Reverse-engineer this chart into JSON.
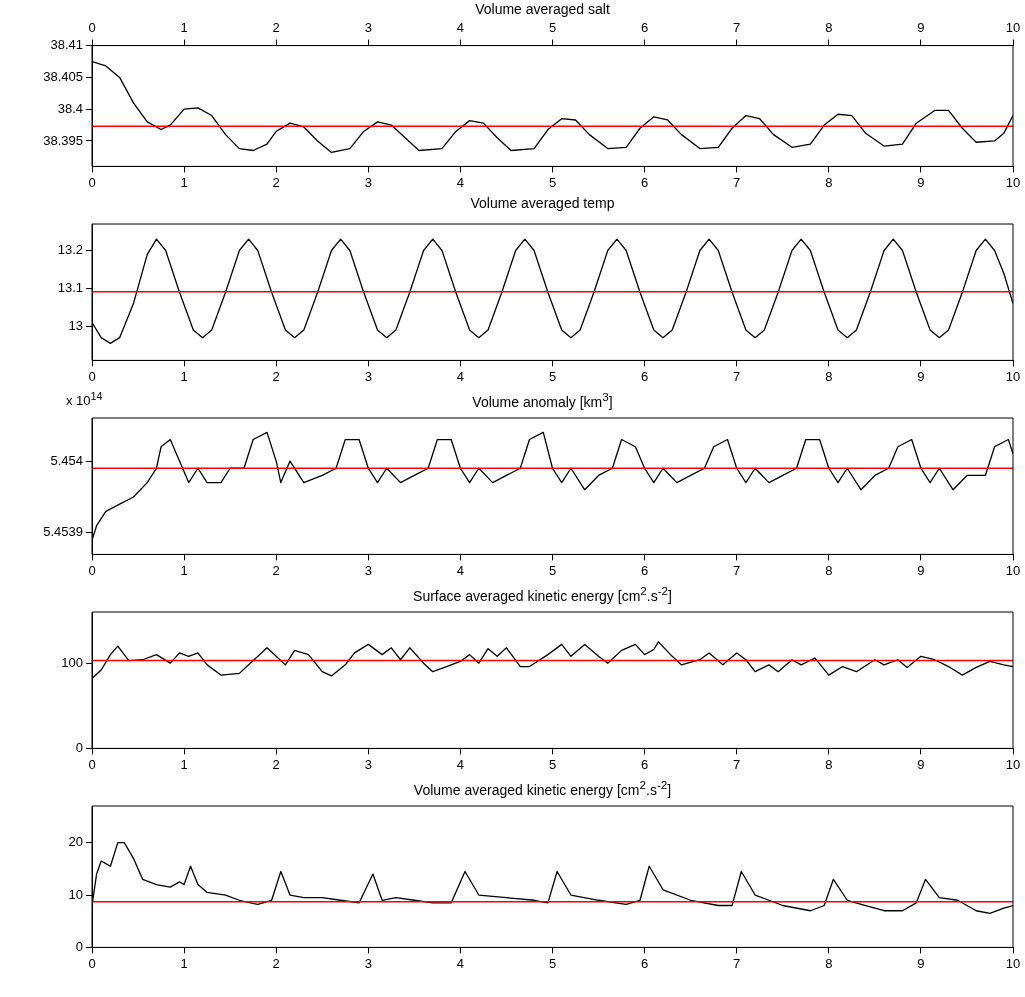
{
  "chart_data": [
    {
      "type": "line",
      "title": "Volume averaged salt",
      "marker": "none",
      "grid": false,
      "xlim": [
        0,
        10
      ],
      "xticks": [
        0,
        1,
        2,
        3,
        4,
        5,
        6,
        7,
        8,
        9,
        10
      ],
      "x2lim": [
        0,
        10
      ],
      "x2ticks": [
        0,
        1,
        2,
        3,
        4,
        5,
        6,
        7,
        8,
        9,
        10
      ],
      "ylim": [
        38.391,
        38.41
      ],
      "yticks": [
        38.395,
        38.4,
        38.405,
        38.41
      ],
      "ref_lines": [
        {
          "axis": "y",
          "value": 38.3973,
          "color": "#ff0000"
        }
      ],
      "series": [
        {
          "color": "#000000",
          "x": [
            0,
            0.15,
            0.3,
            0.45,
            0.6,
            0.75,
            0.85,
            1.0,
            1.15,
            1.3,
            1.45,
            1.6,
            1.75,
            1.9,
            2.0,
            2.15,
            2.3,
            2.45,
            2.6,
            2.8,
            2.95,
            3.1,
            3.25,
            3.4,
            3.55,
            3.8,
            3.95,
            4.1,
            4.25,
            4.4,
            4.55,
            4.8,
            4.95,
            5.1,
            5.25,
            5.4,
            5.6,
            5.8,
            5.95,
            6.1,
            6.25,
            6.4,
            6.6,
            6.8,
            6.95,
            7.1,
            7.25,
            7.4,
            7.6,
            7.8,
            7.95,
            8.1,
            8.25,
            8.4,
            8.6,
            8.8,
            8.95,
            9.15,
            9.3,
            9.45,
            9.6,
            9.8,
            9.9,
            10
          ],
          "values": [
            38.4075,
            38.4068,
            38.405,
            38.401,
            38.398,
            38.3968,
            38.3975,
            38.4,
            38.4002,
            38.399,
            38.396,
            38.3938,
            38.3935,
            38.3945,
            38.3965,
            38.3978,
            38.3972,
            38.395,
            38.3932,
            38.3938,
            38.3965,
            38.398,
            38.3975,
            38.3955,
            38.3935,
            38.3938,
            38.3965,
            38.3982,
            38.3978,
            38.3955,
            38.3935,
            38.3938,
            38.3968,
            38.3985,
            38.3983,
            38.396,
            38.3938,
            38.394,
            38.397,
            38.3988,
            38.3983,
            38.396,
            38.3938,
            38.394,
            38.397,
            38.399,
            38.3985,
            38.396,
            38.394,
            38.3945,
            38.3975,
            38.3992,
            38.399,
            38.3962,
            38.3942,
            38.3945,
            38.3978,
            38.3998,
            38.3998,
            38.397,
            38.3948,
            38.395,
            38.3962,
            38.399
          ]
        }
      ]
    },
    {
      "type": "line",
      "title": "Volume averaged temp",
      "marker": "none",
      "grid": false,
      "xlim": [
        0,
        10
      ],
      "xticks": [
        0,
        1,
        2,
        3,
        4,
        5,
        6,
        7,
        8,
        9,
        10
      ],
      "ylim": [
        12.91,
        13.27
      ],
      "yticks": [
        13,
        13.1,
        13.2
      ],
      "ref_lines": [
        {
          "axis": "y",
          "value": 13.091,
          "color": "#ff0000"
        }
      ],
      "series": [
        {
          "color": "#000000",
          "x": [
            0,
            0.1,
            0.2,
            0.3,
            0.45,
            0.6,
            0.7,
            0.8,
            0.95,
            1.1,
            1.2,
            1.3,
            1.45,
            1.6,
            1.7,
            1.8,
            1.95,
            2.1,
            2.2,
            2.3,
            2.45,
            2.6,
            2.7,
            2.8,
            2.95,
            3.1,
            3.2,
            3.3,
            3.45,
            3.6,
            3.7,
            3.8,
            3.95,
            4.1,
            4.2,
            4.3,
            4.45,
            4.6,
            4.7,
            4.8,
            4.95,
            5.1,
            5.2,
            5.3,
            5.45,
            5.6,
            5.7,
            5.8,
            5.95,
            6.1,
            6.2,
            6.3,
            6.45,
            6.6,
            6.7,
            6.8,
            6.95,
            7.1,
            7.2,
            7.3,
            7.45,
            7.6,
            7.7,
            7.8,
            7.95,
            8.1,
            8.2,
            8.3,
            8.45,
            8.6,
            8.7,
            8.8,
            8.95,
            9.1,
            9.2,
            9.3,
            9.45,
            9.6,
            9.7,
            9.8,
            9.9,
            10
          ],
          "values": [
            13.01,
            12.97,
            12.955,
            12.97,
            13.06,
            13.19,
            13.23,
            13.2,
            13.09,
            12.99,
            12.97,
            12.99,
            13.09,
            13.2,
            13.23,
            13.2,
            13.09,
            12.99,
            12.97,
            12.99,
            13.09,
            13.2,
            13.23,
            13.2,
            13.09,
            12.99,
            12.97,
            12.99,
            13.09,
            13.2,
            13.23,
            13.2,
            13.09,
            12.99,
            12.97,
            12.99,
            13.09,
            13.2,
            13.23,
            13.2,
            13.09,
            12.99,
            12.97,
            12.99,
            13.09,
            13.2,
            13.23,
            13.2,
            13.09,
            12.99,
            12.97,
            12.99,
            13.09,
            13.2,
            13.23,
            13.2,
            13.09,
            12.99,
            12.97,
            12.99,
            13.09,
            13.2,
            13.23,
            13.2,
            13.09,
            12.99,
            12.97,
            12.99,
            13.09,
            13.2,
            13.23,
            13.2,
            13.09,
            12.99,
            12.97,
            12.99,
            13.09,
            13.2,
            13.23,
            13.2,
            13.14,
            13.06
          ]
        }
      ]
    },
    {
      "type": "line",
      "title": "Volume anomaly [km$^{3}$]",
      "marker": "none",
      "grid": false,
      "annotations": [
        "x 10$^{14}$"
      ],
      "xlim": [
        0,
        10
      ],
      "xticks": [
        0,
        1,
        2,
        3,
        4,
        5,
        6,
        7,
        8,
        9,
        10
      ],
      "ylim": [
        5.45387,
        5.45406
      ],
      "yticks": [
        5.4539,
        5.454
      ],
      "ref_lines": [
        {
          "axis": "y",
          "value": 5.45399,
          "color": "#ff0000"
        }
      ],
      "series": [
        {
          "color": "#000000",
          "x": [
            0,
            0.05,
            0.15,
            0.3,
            0.45,
            0.6,
            0.7,
            0.75,
            0.85,
            0.95,
            1.05,
            1.15,
            1.25,
            1.4,
            1.5,
            1.65,
            1.75,
            1.9,
            2.0,
            2.05,
            2.15,
            2.3,
            2.5,
            2.65,
            2.75,
            2.9,
            3.0,
            3.1,
            3.2,
            3.35,
            3.5,
            3.65,
            3.75,
            3.9,
            4.0,
            4.1,
            4.2,
            4.35,
            4.5,
            4.65,
            4.75,
            4.9,
            5.0,
            5.1,
            5.2,
            5.35,
            5.5,
            5.65,
            5.75,
            5.9,
            6.0,
            6.1,
            6.2,
            6.35,
            6.5,
            6.65,
            6.75,
            6.9,
            7.0,
            7.1,
            7.2,
            7.35,
            7.5,
            7.65,
            7.75,
            7.9,
            8.0,
            8.1,
            8.2,
            8.35,
            8.5,
            8.65,
            8.75,
            8.9,
            9.0,
            9.1,
            9.2,
            9.35,
            9.5,
            9.7,
            9.8,
            9.95,
            10
          ],
          "values": [
            5.45389,
            5.45391,
            5.45393,
            5.45394,
            5.45395,
            5.45397,
            5.45399,
            5.45402,
            5.45403,
            5.454,
            5.45397,
            5.45399,
            5.45397,
            5.45397,
            5.45399,
            5.45399,
            5.45403,
            5.45404,
            5.454,
            5.45397,
            5.454,
            5.45397,
            5.45398,
            5.45399,
            5.45403,
            5.45403,
            5.45399,
            5.45397,
            5.45399,
            5.45397,
            5.45398,
            5.45399,
            5.45403,
            5.45403,
            5.45399,
            5.45397,
            5.45399,
            5.45397,
            5.45398,
            5.45399,
            5.45403,
            5.45404,
            5.45399,
            5.45397,
            5.45399,
            5.45396,
            5.45398,
            5.45399,
            5.45403,
            5.45402,
            5.45399,
            5.45397,
            5.45399,
            5.45397,
            5.45398,
            5.45399,
            5.45402,
            5.45403,
            5.45399,
            5.45397,
            5.45399,
            5.45397,
            5.45398,
            5.45399,
            5.45403,
            5.45403,
            5.45399,
            5.45397,
            5.45399,
            5.45396,
            5.45398,
            5.45399,
            5.45402,
            5.45403,
            5.45399,
            5.45397,
            5.45399,
            5.45396,
            5.45398,
            5.45398,
            5.45402,
            5.45403,
            5.45401
          ]
        }
      ]
    },
    {
      "type": "line",
      "title": "Surface averaged kinetic energy [cm$^{2}$.s$^{-2}$]",
      "marker": "none",
      "grid": false,
      "xlim": [
        0,
        10
      ],
      "xticks": [
        0,
        1,
        2,
        3,
        4,
        5,
        6,
        7,
        8,
        9,
        10
      ],
      "ylim": [
        0,
        160
      ],
      "yticks": [
        0,
        100
      ],
      "ref_lines": [
        {
          "axis": "y",
          "value": 103,
          "color": "#ff0000"
        }
      ],
      "series": [
        {
          "color": "#000000",
          "x": [
            0,
            0.1,
            0.2,
            0.28,
            0.4,
            0.55,
            0.7,
            0.85,
            0.95,
            1.05,
            1.15,
            1.25,
            1.4,
            1.6,
            1.75,
            1.9,
            2.0,
            2.1,
            2.2,
            2.35,
            2.5,
            2.6,
            2.75,
            2.85,
            3.0,
            3.15,
            3.25,
            3.35,
            3.45,
            3.6,
            3.7,
            3.85,
            4.0,
            4.1,
            4.2,
            4.3,
            4.4,
            4.5,
            4.65,
            4.75,
            4.95,
            5.1,
            5.2,
            5.35,
            5.5,
            5.6,
            5.75,
            5.9,
            6.0,
            6.1,
            6.15,
            6.3,
            6.4,
            6.6,
            6.7,
            6.85,
            7.0,
            7.1,
            7.2,
            7.35,
            7.45,
            7.6,
            7.7,
            7.85,
            8.0,
            8.15,
            8.3,
            8.5,
            8.6,
            8.75,
            8.85,
            9.0,
            9.15,
            9.3,
            9.45,
            9.6,
            9.75,
            9.9,
            10
          ],
          "values": [
            82,
            92,
            110,
            120,
            103,
            104,
            110,
            100,
            112,
            108,
            112,
            98,
            86,
            88,
            103,
            118,
            108,
            98,
            115,
            110,
            90,
            85,
            98,
            112,
            122,
            110,
            118,
            104,
            118,
            100,
            90,
            96,
            102,
            110,
            100,
            117,
            108,
            118,
            96,
            96,
            110,
            122,
            108,
            122,
            108,
            100,
            115,
            122,
            110,
            116,
            125,
            108,
            98,
            104,
            112,
            98,
            112,
            104,
            90,
            98,
            90,
            104,
            98,
            106,
            86,
            96,
            90,
            104,
            98,
            104,
            95,
            108,
            104,
            96,
            86,
            95,
            102,
            98,
            96
          ]
        }
      ]
    },
    {
      "type": "line",
      "title": "Volume averaged kinetic energy [cm$^{2}$.s$^{-2}$]",
      "marker": "none",
      "grid": false,
      "xlim": [
        0,
        10
      ],
      "xticks": [
        0,
        1,
        2,
        3,
        4,
        5,
        6,
        7,
        8,
        9,
        10
      ],
      "ylim": [
        0,
        27
      ],
      "yticks": [
        0,
        10,
        20
      ],
      "ref_lines": [
        {
          "axis": "y",
          "value": 8.7,
          "color": "#ff0000"
        }
      ],
      "series": [
        {
          "color": "#000000",
          "x": [
            0,
            0.05,
            0.1,
            0.15,
            0.2,
            0.28,
            0.35,
            0.45,
            0.55,
            0.7,
            0.85,
            0.95,
            1.0,
            1.07,
            1.15,
            1.25,
            1.45,
            1.6,
            1.8,
            1.95,
            2.05,
            2.15,
            2.3,
            2.5,
            2.7,
            2.9,
            3.05,
            3.15,
            3.3,
            3.5,
            3.7,
            3.9,
            4.05,
            4.2,
            4.5,
            4.8,
            4.95,
            5.05,
            5.2,
            5.5,
            5.8,
            5.95,
            6.05,
            6.2,
            6.5,
            6.8,
            6.95,
            7.05,
            7.2,
            7.5,
            7.8,
            7.95,
            8.05,
            8.2,
            8.4,
            8.6,
            8.8,
            8.95,
            9.05,
            9.2,
            9.4,
            9.6,
            9.75,
            9.9,
            10
          ],
          "values": [
            8,
            14,
            16.5,
            16,
            15.5,
            20,
            20,
            17,
            13,
            12,
            11.5,
            12.5,
            12,
            15.5,
            12,
            10.5,
            10,
            9,
            8.2,
            9,
            14.5,
            10,
            9.5,
            9.5,
            9,
            8.5,
            14,
            9,
            9.5,
            9,
            8.5,
            8.5,
            14.5,
            10,
            9.5,
            9,
            8.5,
            14.5,
            10,
            9,
            8.2,
            9,
            15.5,
            11,
            9,
            8,
            8,
            14.5,
            10,
            8,
            7,
            8,
            13,
            9,
            8,
            7,
            7,
            8.5,
            13,
            9.5,
            9,
            7,
            6.5,
            7.5,
            8
          ]
        }
      ]
    }
  ]
}
